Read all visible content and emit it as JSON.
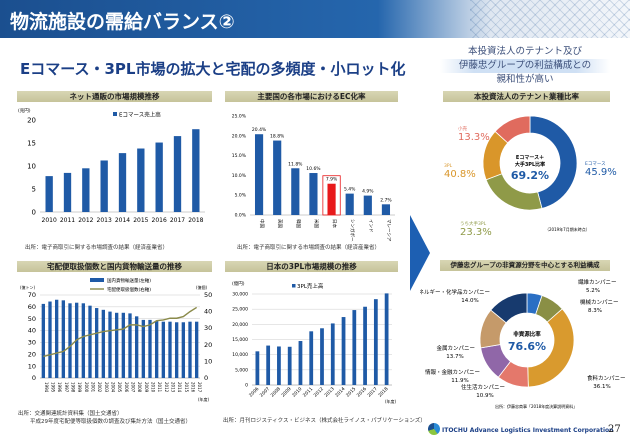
{
  "header": {
    "title": "物流施設の需給バランス②",
    "subtitle": "Eコマース・3PL市場の拡大と宅配の多頻度・小ロット化"
  },
  "lead": {
    "line1": "本投資法人のテナント及び",
    "line2": "伊藤忠グループの利益構成との",
    "line3": "親和性が高い"
  },
  "footer": {
    "company": "ITOCHU Advance Logistics Investment Corporation",
    "page": "27"
  },
  "colors": {
    "bar": "#1f5aa6",
    "highlight": "#e8191b",
    "line": "#8a8a4a",
    "navy": "#1b3f86"
  },
  "chart_data": [
    {
      "type": "bar",
      "title": "ネット通販の市場規模推移",
      "unit": "(兆円)",
      "legend": "Eコマース売上高",
      "categories": [
        "2010",
        "2011",
        "2012",
        "2013",
        "2014",
        "2015",
        "2016",
        "2017",
        "2018"
      ],
      "values": [
        7.8,
        8.5,
        9.5,
        11.2,
        12.8,
        13.8,
        15.1,
        16.5,
        18.0
      ],
      "ylim": [
        0,
        20
      ],
      "yticks": [
        "0",
        "5",
        "10",
        "15",
        "20"
      ],
      "source": "出所：電子商取引に関する市場調査の結果（経済産業省）"
    },
    {
      "type": "bar",
      "title": "主要国の各市場におけるEC化率",
      "categories": [
        "中国",
        "英国",
        "韓国",
        "米国",
        "日本",
        "シンガポール",
        "インド",
        "マレーシア"
      ],
      "values": [
        20.4,
        18.8,
        11.8,
        10.6,
        7.9,
        5.4,
        4.9,
        2.7
      ],
      "labels": [
        "20.4%",
        "18.8%",
        "11.8%",
        "10.6%",
        "7.9%",
        "5.4%",
        "4.9%",
        "2.7%"
      ],
      "highlight": "日本",
      "ylim": [
        0,
        25
      ],
      "yticks": [
        "0.0%",
        "5.0%",
        "10.0%",
        "15.0%",
        "20.0%",
        "25.0%"
      ],
      "source": "出所：電子商取引に関する市場調査の結果（経済産業省）"
    },
    {
      "type": "bar+line",
      "title": "宅配便取扱個数と国内貨物輸送量の推移",
      "left_unit": "(億トン)",
      "right_unit": "(億個)",
      "xunit": "(年度)",
      "categories": [
        "1994",
        "1995",
        "1996",
        "1997",
        "1998",
        "1999",
        "2000",
        "2001",
        "2002",
        "2003",
        "2004",
        "2005",
        "2006",
        "2007",
        "2008",
        "2009",
        "2010",
        "2011",
        "2012",
        "2013",
        "2014",
        "2015",
        "2016",
        "2017"
      ],
      "series": [
        {
          "name": "国内貨物輸送量(左軸)",
          "type": "bar",
          "axis": "left",
          "values": [
            62.5,
            64.5,
            66,
            65.5,
            63,
            63.5,
            63,
            61,
            59,
            57.5,
            56,
            55,
            55,
            54.5,
            52,
            49,
            49,
            48,
            47.5,
            47.5,
            47,
            47,
            47.5,
            47.5
          ]
        },
        {
          "name": "宅配便取扱個数(右軸)",
          "type": "line",
          "axis": "right",
          "values": [
            13,
            14,
            15,
            16,
            19,
            23,
            25,
            26,
            27,
            28,
            28.5,
            29,
            29.5,
            32,
            32,
            31,
            32,
            34.5,
            35,
            36,
            36,
            37,
            40,
            42.5
          ]
        }
      ],
      "ylim": [
        0,
        70
      ],
      "y2lim": [
        0,
        50
      ],
      "yticks": [
        "0",
        "10",
        "20",
        "30",
        "40",
        "50",
        "60",
        "70"
      ],
      "y2ticks": [
        "0",
        "10",
        "20",
        "30",
        "40",
        "50"
      ],
      "source": "出所：交通関連統計資料集（国土交通省）",
      "source2": "平成29年度宅配便等取扱個数の調査及び集計方法（国土交通省）"
    },
    {
      "type": "bar",
      "title": "日本の3PL市場規模の推移",
      "unit": "(億円)",
      "xunit": "(年度)",
      "legend": "3PL売上高",
      "categories": [
        "2006",
        "2007",
        "2008",
        "2009",
        "2010",
        "2011",
        "2012",
        "2013",
        "2014",
        "2015",
        "2016",
        "2017",
        "2018"
      ],
      "values": [
        11100,
        13000,
        12700,
        12600,
        14500,
        17700,
        18700,
        20300,
        22400,
        24700,
        25800,
        28300,
        30200
      ],
      "ylim": [
        0,
        30000
      ],
      "yticks": [
        "0",
        "5,000",
        "10,000",
        "15,000",
        "20,000",
        "25,000",
        "30,000"
      ],
      "source": "出所：月刊ロジスティクス・ビジネス（株式会社ライノス・パブリケーションズ）"
    },
    {
      "type": "pie",
      "title": "本投資法人のテナント業種比率",
      "center_label1": "Eコマース＋",
      "center_label2": "大手3PL比率",
      "center_value": "69.2%",
      "slices": [
        {
          "name": "Eコマース",
          "value": 45.9,
          "label": "45.9%",
          "color": "#1f5aa6"
        },
        {
          "name": "うち大手3PL",
          "value": 23.3,
          "label": "23.3%",
          "color": "#8f9a48"
        },
        {
          "name": "3PL",
          "value": 17.5,
          "total_label": "40.8%",
          "color": "#d9962a"
        },
        {
          "name": "小売",
          "value": 13.3,
          "label": "13.3%",
          "color": "#e06b5e"
        }
      ],
      "note": "（2019年7月期末時点）"
    },
    {
      "type": "pie",
      "title": "伊藤忠グループの非資源分野を中心とする利益構成",
      "center_label": "非資源比率",
      "center_value": "76.6%",
      "slices": [
        {
          "name": "繊維カンパニー",
          "value": 5.2,
          "label": "5.2%",
          "color": "#2a6fc4"
        },
        {
          "name": "機械カンパニー",
          "value": 8.3,
          "label": "8.3%",
          "color": "#8a8f45"
        },
        {
          "name": "食料カンパニー",
          "value": 36.1,
          "label": "36.1%",
          "color": "#d99a2e"
        },
        {
          "name": "住生活カンパニー",
          "value": 10.9,
          "label": "10.9%",
          "color": "#e4786b"
        },
        {
          "name": "情報・金融カンパニー",
          "value": 11.9,
          "label": "11.9%",
          "color": "#9067a8"
        },
        {
          "name": "金属カンパニー",
          "value": 13.7,
          "label": "13.7%",
          "color": "#c59a6a"
        },
        {
          "name": "エネルギー・化学品カンパニー",
          "value": 14.0,
          "label": "14.0%",
          "color": "#173a6e"
        }
      ],
      "source": "出所：伊藤忠商事「2018年度決算説明資料」"
    }
  ]
}
